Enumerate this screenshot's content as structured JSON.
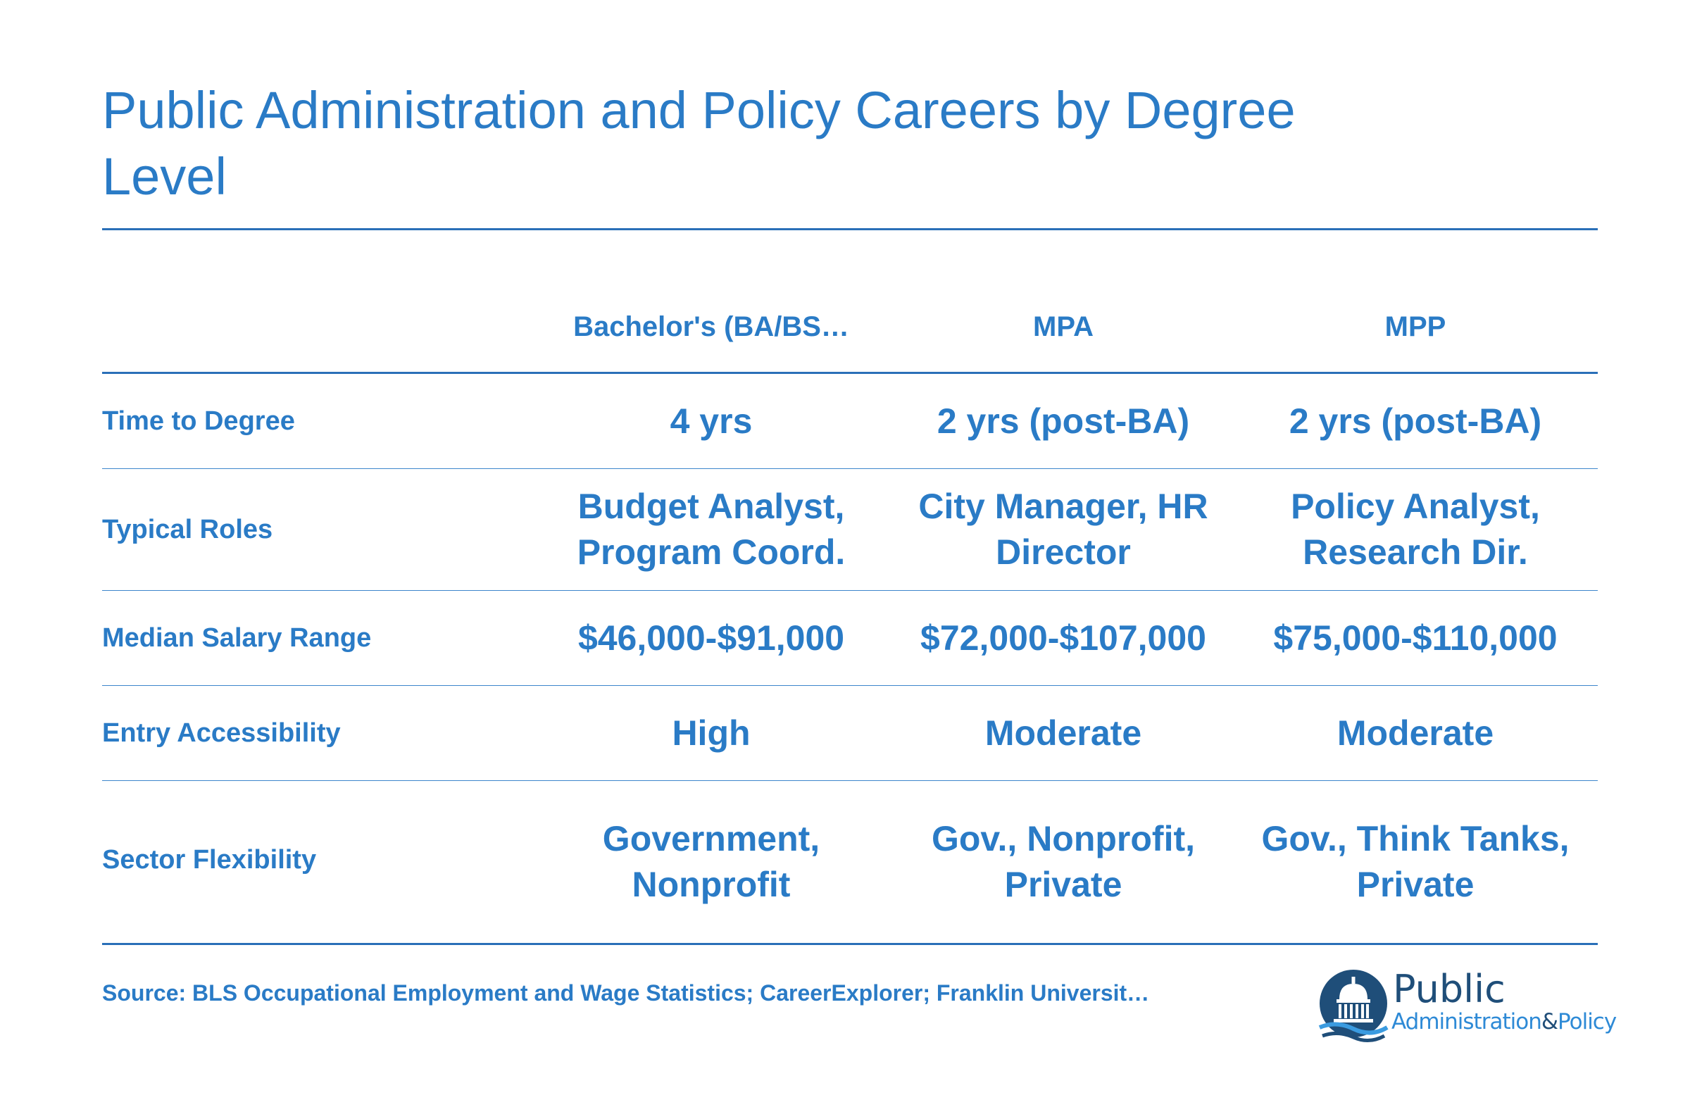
{
  "title": "Public Administration and Policy Careers by Degree Level",
  "columns": [
    "Bachelor's (BA/BS…",
    "MPA",
    "MPP"
  ],
  "rows": [
    {
      "label": "Time to Degree",
      "values": [
        "4 yrs",
        "2 yrs (post-BA)",
        "2 yrs (post-BA)"
      ]
    },
    {
      "label": "Typical Roles",
      "values": [
        "Budget Analyst, Program Coord.",
        "City Manager, HR Director",
        "Policy Analyst, Research Dir."
      ]
    },
    {
      "label": "Median Salary Range",
      "values": [
        "$46,000-$91,000",
        "$72,000-$107,000",
        "$75,000-$110,000"
      ]
    },
    {
      "label": "Entry Accessibility",
      "values": [
        "High",
        "Moderate",
        "Moderate"
      ]
    },
    {
      "label": "Sector Flexibility",
      "values": [
        "Government, Nonprofit",
        "Gov., Nonprofit, Private",
        "Gov., Think Tanks, Private"
      ]
    }
  ],
  "source": "Source: BLS Occupational Employment and Wage Statistics; CareerExplorer; Franklin Universit…",
  "logo": {
    "line1": "Public",
    "line2a": "Administration",
    "amp": "&",
    "line2b": "Policy",
    "icon": "capitol-dome-icon"
  },
  "colors": {
    "accent": "#2a7bc6",
    "rule": "#2a6fb8",
    "logo_dark": "#1f4e79"
  }
}
